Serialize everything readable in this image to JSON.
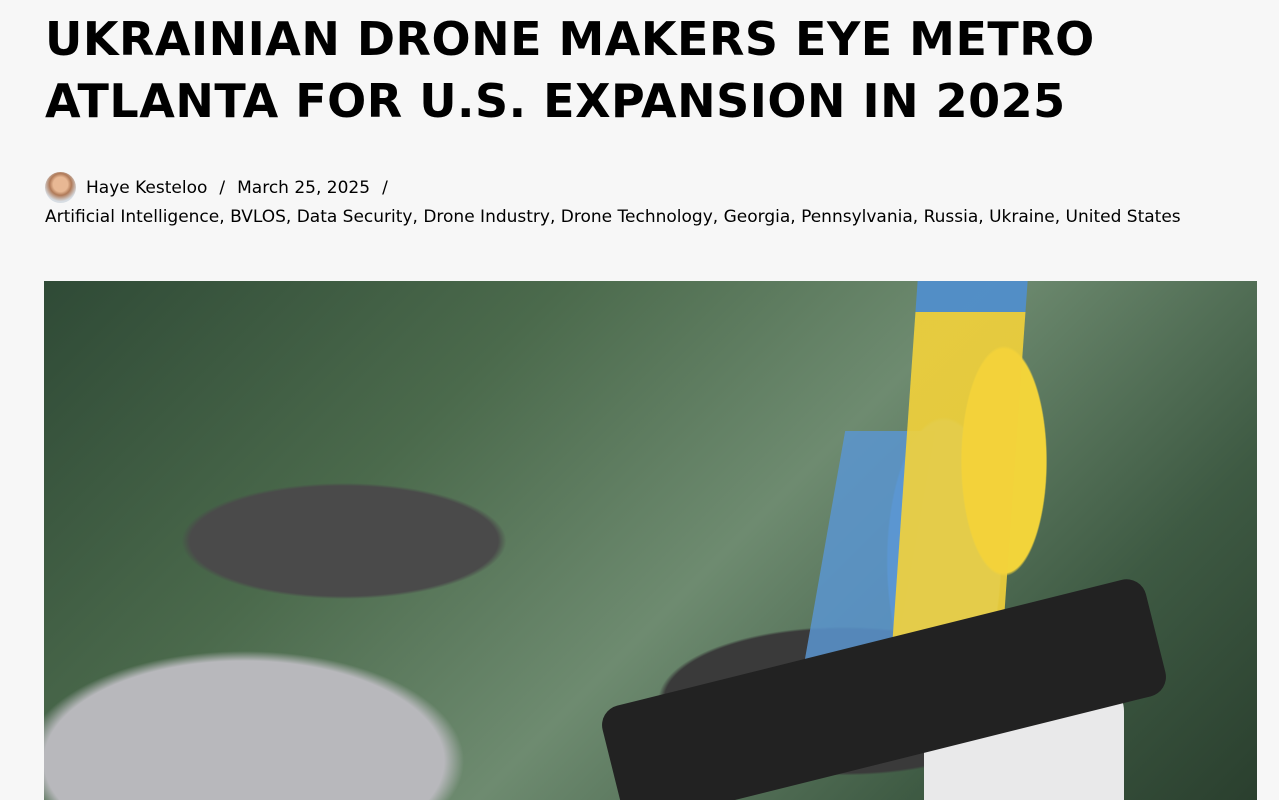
{
  "article": {
    "title": "Ukrainian Drone Makers Eye Metro Atlanta for U.S. Expansion in 2025",
    "author": "Haye Kesteloo",
    "date": "March 25, 2025",
    "separator": "/",
    "categories": [
      "Artificial Intelligence",
      "BVLOS",
      "Data Security",
      "Drone Industry",
      "Drone Technology",
      "Georgia",
      "Pennsylvania",
      "Russia",
      "Ukraine",
      "United States"
    ],
    "category_separator": ", "
  }
}
